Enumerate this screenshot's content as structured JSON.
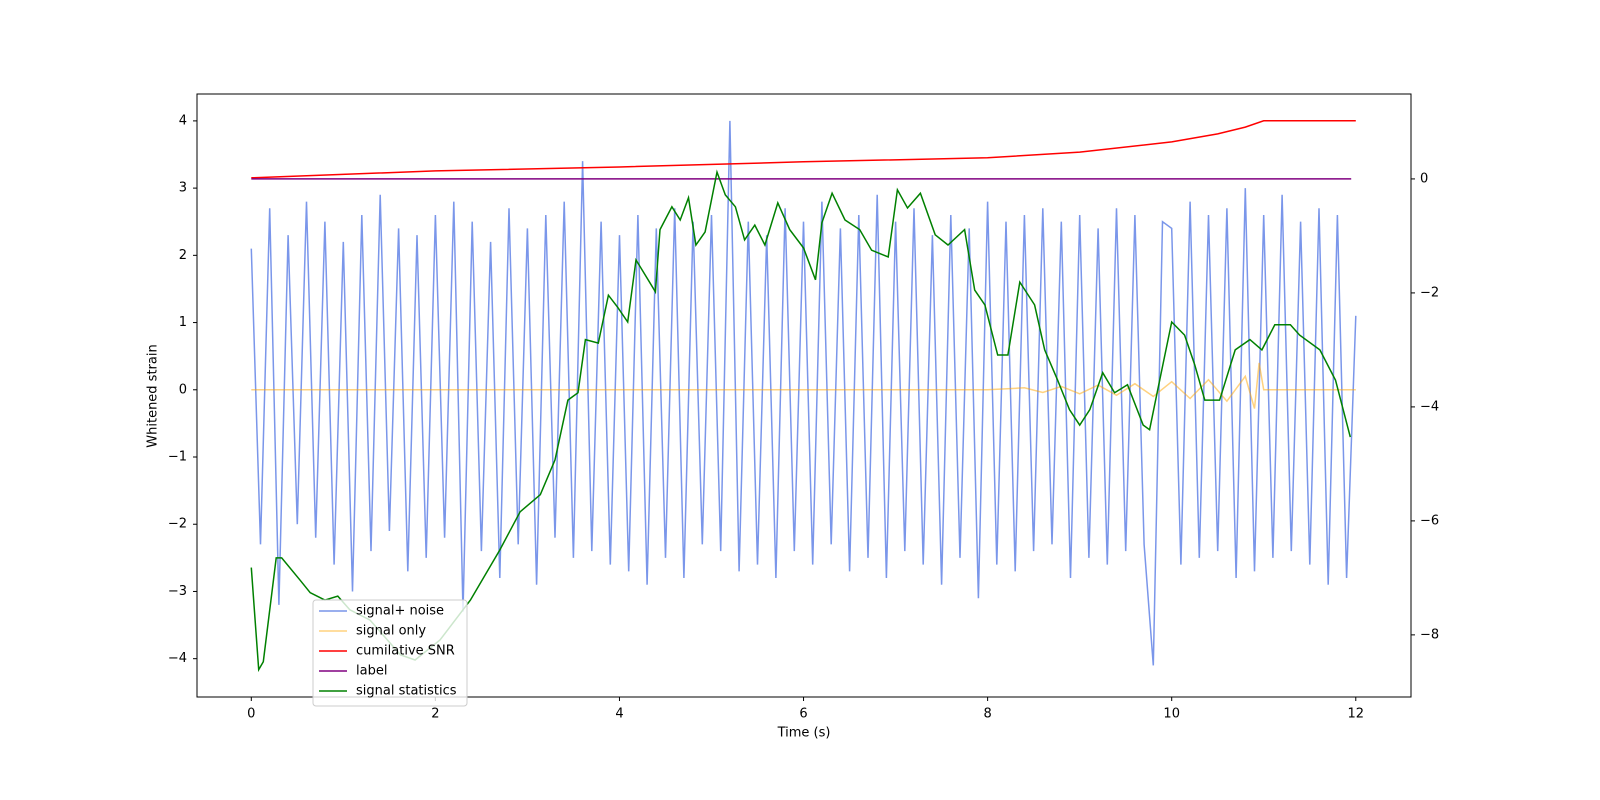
{
  "chart_data": {
    "type": "line",
    "xlabel": "Time (s)",
    "ylabel": "Whitened strain",
    "xlim": [
      -0.59,
      12.6
    ],
    "ylim": [
      -4.57,
      4.4
    ],
    "y2lim": [
      -9.09,
      1.49
    ],
    "xticks": [
      0,
      2,
      4,
      6,
      8,
      10,
      12
    ],
    "yticks": [
      {
        "value": -4,
        "label": "−4"
      },
      {
        "value": -3,
        "label": "−3"
      },
      {
        "value": -2,
        "label": "−2"
      },
      {
        "value": -1,
        "label": "−1"
      },
      0,
      1,
      2,
      3,
      4
    ],
    "y2ticks": [
      {
        "value": -8,
        "label": "−8"
      },
      {
        "value": -6,
        "label": "−6"
      },
      {
        "value": -4,
        "label": "−4"
      },
      {
        "value": -2,
        "label": "−2"
      },
      0
    ],
    "series": [
      {
        "name": "signal+ noise",
        "color": "#4169e1",
        "x": [
          0,
          0.1,
          0.2,
          0.3,
          0.4,
          0.5,
          0.6,
          0.7,
          0.8,
          0.9,
          1,
          1.1,
          1.2,
          1.3,
          1.4,
          1.5,
          1.6,
          1.7,
          1.8,
          1.9,
          2,
          2.1,
          2.2,
          2.3,
          2.4,
          2.5,
          2.6,
          2.7,
          2.8,
          2.9,
          3,
          3.1,
          3.2,
          3.3,
          3.4,
          3.5,
          3.6,
          3.7,
          3.8,
          3.9,
          4,
          4.1,
          4.2,
          4.3,
          4.4,
          4.5,
          4.6,
          4.7,
          4.8,
          4.9,
          5,
          5.1,
          5.2,
          5.3,
          5.4,
          5.5,
          5.6,
          5.7,
          5.8,
          5.9,
          6,
          6.1,
          6.2,
          6.3,
          6.4,
          6.5,
          6.6,
          6.7,
          6.8,
          6.9,
          7,
          7.1,
          7.2,
          7.3,
          7.4,
          7.5,
          7.6,
          7.7,
          7.8,
          7.9,
          8,
          8.1,
          8.2,
          8.3,
          8.4,
          8.5,
          8.6,
          8.7,
          8.8,
          8.9,
          9,
          9.1,
          9.2,
          9.3,
          9.4,
          9.5,
          9.6,
          9.7,
          9.8,
          9.9,
          10,
          10.1,
          10.2,
          10.3,
          10.4,
          10.5,
          10.6,
          10.7,
          10.8,
          10.9,
          11,
          11.1,
          11.2,
          11.3,
          11.4,
          11.5,
          11.6,
          11.7,
          11.8,
          11.9,
          12
        ],
        "values": [
          2.1,
          -2.3,
          2.7,
          -3.2,
          2.3,
          -2.0,
          2.8,
          -2.2,
          2.5,
          -2.6,
          2.2,
          -3.0,
          2.6,
          -2.4,
          2.9,
          -2.1,
          2.4,
          -2.7,
          2.3,
          -2.5,
          2.6,
          -2.2,
          2.8,
          -3.3,
          2.5,
          -2.4,
          2.2,
          -2.8,
          2.7,
          -2.3,
          2.4,
          -2.9,
          2.6,
          -2.2,
          2.8,
          -2.5,
          3.4,
          -2.4,
          2.5,
          -2.6,
          2.3,
          -2.7,
          2.6,
          -2.9,
          2.4,
          -2.5,
          2.7,
          -2.8,
          2.5,
          -2.3,
          2.6,
          -2.4,
          4.0,
          -2.7,
          2.5,
          -2.6,
          2.3,
          -2.8,
          2.7,
          -2.4,
          2.5,
          -2.6,
          2.8,
          -2.3,
          2.4,
          -2.7,
          2.6,
          -2.5,
          2.9,
          -2.8,
          2.5,
          -2.4,
          2.7,
          -2.6,
          2.3,
          -2.9,
          2.6,
          -2.5,
          2.4,
          -3.1,
          2.8,
          -2.6,
          2.5,
          -2.7,
          2.6,
          -2.4,
          2.7,
          -2.3,
          2.5,
          -2.8,
          2.6,
          -2.5,
          2.4,
          -2.6,
          2.7,
          -2.4,
          2.6,
          -2.3,
          -4.1,
          2.5,
          2.4,
          -2.6,
          2.8,
          -2.5,
          2.6,
          -2.4,
          2.7,
          -2.8,
          3.0,
          -2.7,
          2.6,
          -2.5,
          2.9,
          -2.4,
          2.5,
          -2.6,
          2.7,
          -2.9,
          2.6,
          -2.8,
          1.1
        ]
      },
      {
        "name": "signal only",
        "color": "#ffa500",
        "x": [
          0,
          8,
          8.4,
          8.6,
          8.8,
          9,
          9.2,
          9.4,
          9.6,
          9.8,
          10,
          10.2,
          10.4,
          10.6,
          10.8,
          10.9,
          10.95,
          11,
          12
        ],
        "values": [
          0,
          0,
          0.03,
          -0.04,
          0.05,
          -0.06,
          0.07,
          -0.08,
          0.09,
          -0.1,
          0.12,
          -0.13,
          0.15,
          -0.17,
          0.2,
          -0.28,
          0.4,
          0,
          0
        ]
      },
      {
        "name": "cumilative SNR",
        "color": "#ff0000",
        "axis": "y2",
        "x": [
          0,
          2,
          4,
          6,
          8,
          9,
          10,
          10.5,
          10.8,
          11,
          12
        ],
        "values": [
          0.02,
          0.14,
          0.21,
          0.3,
          0.37,
          0.47,
          0.65,
          0.79,
          0.91,
          1.02,
          1.02
        ]
      },
      {
        "name": "label",
        "color": "#800080",
        "axis": "y2",
        "x": [
          0,
          11.95
        ],
        "values": [
          0,
          0
        ]
      },
      {
        "name": "signal statistics",
        "color": "#008000",
        "axis": "y2",
        "x": [
          0,
          0.08,
          0.13,
          0.27,
          0.33,
          0.53,
          0.64,
          0.8,
          0.94,
          1.07,
          1.29,
          1.62,
          1.78,
          2.05,
          2.38,
          2.7,
          2.92,
          3.14,
          3.3,
          3.44,
          3.55,
          3.63,
          3.77,
          3.88,
          3.98,
          4.09,
          4.18,
          4.3,
          4.39,
          4.44,
          4.57,
          4.66,
          4.75,
          4.83,
          4.93,
          5.06,
          5.15,
          5.26,
          5.36,
          5.47,
          5.58,
          5.72,
          5.85,
          6,
          6.13,
          6.2,
          6.31,
          6.45,
          6.61,
          6.74,
          6.92,
          7.02,
          7.13,
          7.27,
          7.43,
          7.57,
          7.75,
          7.86,
          7.97,
          8.11,
          8.22,
          8.35,
          8.51,
          8.62,
          8.76,
          8.89,
          9,
          9.11,
          9.25,
          9.38,
          9.52,
          9.69,
          9.76,
          9.87,
          10,
          10.14,
          10.25,
          10.36,
          10.52,
          10.69,
          10.85,
          10.98,
          11.12,
          11.29,
          11.39,
          11.61,
          11.78,
          11.94
        ],
        "values": [
          -6.82,
          -8.61,
          -8.47,
          -6.65,
          -6.65,
          -7.04,
          -7.26,
          -7.39,
          -7.32,
          -7.56,
          -7.74,
          -8.35,
          -8.44,
          -8.09,
          -7.39,
          -6.51,
          -5.84,
          -5.54,
          -4.93,
          -3.88,
          -3.75,
          -2.82,
          -2.88,
          -2.04,
          -2.25,
          -2.51,
          -1.42,
          -1.74,
          -1.98,
          -0.89,
          -0.49,
          -0.72,
          -0.33,
          -1.16,
          -0.93,
          0.12,
          -0.28,
          -0.49,
          -1.07,
          -0.81,
          -1.16,
          -0.42,
          -0.89,
          -1.21,
          -1.77,
          -0.77,
          -0.25,
          -0.72,
          -0.89,
          -1.25,
          -1.37,
          -0.19,
          -0.51,
          -0.25,
          -0.98,
          -1.16,
          -0.89,
          -1.95,
          -2.21,
          -3.09,
          -3.09,
          -1.81,
          -2.21,
          -3.0,
          -3.53,
          -4.05,
          -4.32,
          -4.05,
          -3.4,
          -3.75,
          -3.61,
          -4.32,
          -4.4,
          -3.53,
          -2.51,
          -2.74,
          -3.26,
          -3.88,
          -3.88,
          -3.0,
          -2.82,
          -3.0,
          -2.56,
          -2.56,
          -2.74,
          -3.0,
          -3.53,
          -4.53
        ]
      }
    ]
  }
}
